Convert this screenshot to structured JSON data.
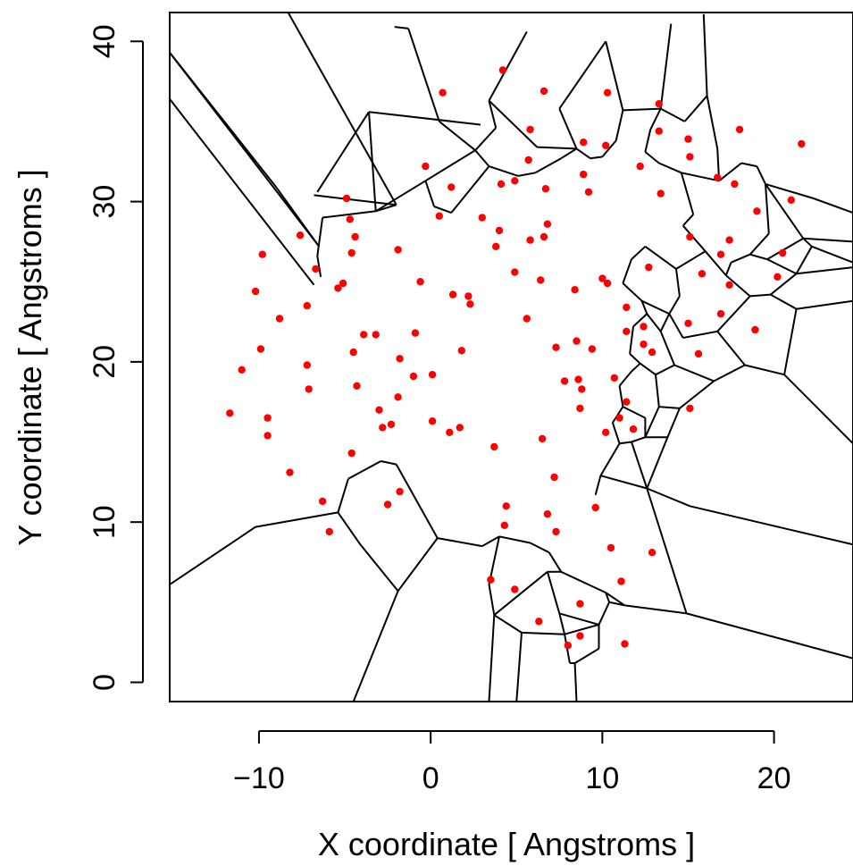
{
  "chart_data": {
    "type": "scatter",
    "xlabel": "X coordinate [ Angstroms ]",
    "ylabel": "Y coordinate [ Angstroms ]",
    "xlim": [
      -15.2,
      24.6
    ],
    "ylim": [
      -1.2,
      41.8
    ],
    "x_ticks": [
      -10,
      0,
      10,
      20
    ],
    "y_ticks": [
      0,
      10,
      20,
      30,
      40
    ],
    "x_tick_labels": [
      "−10",
      "0",
      "10",
      "20"
    ],
    "y_tick_labels": [
      "0",
      "10",
      "20",
      "30",
      "40"
    ],
    "point_color": "#ff0000",
    "edge_color": "#000000",
    "overlay": "voronoi-tessellation",
    "points": [
      [
        4.2,
        38.2
      ],
      [
        0.7,
        36.8
      ],
      [
        6.6,
        36.9
      ],
      [
        10.3,
        36.8
      ],
      [
        13.3,
        36.1
      ],
      [
        18.0,
        34.5
      ],
      [
        21.6,
        33.6
      ],
      [
        5.8,
        34.5
      ],
      [
        8.9,
        33.7
      ],
      [
        10.2,
        33.5
      ],
      [
        13.3,
        34.4
      ],
      [
        15.0,
        33.9
      ],
      [
        15.1,
        32.8
      ],
      [
        5.7,
        32.6
      ],
      [
        -0.3,
        32.2
      ],
      [
        12.2,
        32.2
      ],
      [
        16.7,
        31.5
      ],
      [
        4.1,
        31.1
      ],
      [
        4.9,
        31.3
      ],
      [
        1.2,
        30.9
      ],
      [
        6.7,
        30.8
      ],
      [
        9.2,
        30.6
      ],
      [
        13.4,
        30.5
      ],
      [
        17.7,
        31.1
      ],
      [
        -4.9,
        30.2
      ],
      [
        0.5,
        29.1
      ],
      [
        3.0,
        29.0
      ],
      [
        8.9,
        31.7
      ],
      [
        -4.7,
        28.9
      ],
      [
        4.0,
        28.2
      ],
      [
        6.8,
        28.6
      ],
      [
        -7.6,
        27.9
      ],
      [
        -4.4,
        27.8
      ],
      [
        -1.9,
        27.0
      ],
      [
        3.8,
        27.2
      ],
      [
        5.8,
        27.6
      ],
      [
        6.6,
        27.8
      ],
      [
        15.1,
        27.8
      ],
      [
        17.4,
        27.6
      ],
      [
        -9.8,
        26.7
      ],
      [
        -4.6,
        26.8
      ],
      [
        21.0,
        30.1
      ],
      [
        19.0,
        29.4
      ],
      [
        16.9,
        26.7
      ],
      [
        20.5,
        26.8
      ],
      [
        -6.7,
        25.8
      ],
      [
        -0.6,
        25.0
      ],
      [
        4.9,
        25.6
      ],
      [
        6.4,
        25.1
      ],
      [
        8.4,
        24.5
      ],
      [
        10.0,
        25.2
      ],
      [
        10.3,
        24.9
      ],
      [
        12.7,
        25.9
      ],
      [
        15.8,
        25.5
      ],
      [
        20.2,
        25.3
      ],
      [
        -5.1,
        24.9
      ],
      [
        -5.4,
        24.6
      ],
      [
        1.3,
        24.2
      ],
      [
        2.2,
        24.1
      ],
      [
        -10.2,
        24.4
      ],
      [
        2.3,
        23.6
      ],
      [
        -7.2,
        23.5
      ],
      [
        11.4,
        23.4
      ],
      [
        17.4,
        24.8
      ],
      [
        16.9,
        23.0
      ],
      [
        -8.8,
        22.7
      ],
      [
        5.6,
        22.7
      ],
      [
        -3.9,
        21.7
      ],
      [
        -3.2,
        21.7
      ],
      [
        -0.9,
        21.8
      ],
      [
        8.5,
        21.3
      ],
      [
        11.4,
        21.9
      ],
      [
        12.4,
        22.2
      ],
      [
        15.0,
        22.4
      ],
      [
        18.9,
        22.0
      ],
      [
        -9.9,
        20.8
      ],
      [
        -4.5,
        20.6
      ],
      [
        1.8,
        20.7
      ],
      [
        7.3,
        20.9
      ],
      [
        9.4,
        20.8
      ],
      [
        12.4,
        21.1
      ],
      [
        12.9,
        20.6
      ],
      [
        15.6,
        20.5
      ],
      [
        -11.0,
        19.5
      ],
      [
        -7.2,
        19.8
      ],
      [
        -1.8,
        20.2
      ],
      [
        0.1,
        19.2
      ],
      [
        -1.0,
        19.1
      ],
      [
        7.8,
        18.8
      ],
      [
        8.6,
        18.9
      ],
      [
        8.8,
        18.3
      ],
      [
        10.7,
        19.0
      ],
      [
        -7.1,
        18.3
      ],
      [
        -4.3,
        18.5
      ],
      [
        -1.9,
        17.8
      ],
      [
        11.4,
        17.5
      ],
      [
        -3.0,
        17.0
      ],
      [
        -2.3,
        16.1
      ],
      [
        8.7,
        17.1
      ],
      [
        15.1,
        17.1
      ],
      [
        -11.7,
        16.8
      ],
      [
        -9.5,
        16.5
      ],
      [
        -2.8,
        15.9
      ],
      [
        0.1,
        16.3
      ],
      [
        1.1,
        15.6
      ],
      [
        1.7,
        15.9
      ],
      [
        11.0,
        16.5
      ],
      [
        11.8,
        15.8
      ],
      [
        10.2,
        15.6
      ],
      [
        -9.5,
        15.4
      ],
      [
        6.5,
        15.2
      ],
      [
        3.7,
        14.7
      ],
      [
        -4.6,
        14.3
      ],
      [
        -8.2,
        13.1
      ],
      [
        7.2,
        12.8
      ],
      [
        -1.8,
        11.9
      ],
      [
        -6.3,
        11.3
      ],
      [
        4.4,
        11.0
      ],
      [
        -2.5,
        11.1
      ],
      [
        9.6,
        10.9
      ],
      [
        6.8,
        10.5
      ],
      [
        4.3,
        9.8
      ],
      [
        7.3,
        9.4
      ],
      [
        -5.9,
        9.4
      ],
      [
        10.5,
        8.4
      ],
      [
        12.9,
        8.1
      ],
      [
        3.5,
        6.4
      ],
      [
        4.9,
        5.8
      ],
      [
        11.1,
        6.3
      ],
      [
        8.7,
        4.9
      ],
      [
        6.3,
        3.8
      ],
      [
        8.7,
        2.9
      ],
      [
        8.0,
        2.3
      ],
      [
        11.3,
        2.4
      ]
    ],
    "edges": [
      [
        -15.2,
        39.3,
        -6.5,
        27.2
      ],
      [
        -15.2,
        39.3,
        -9.0,
        30.9
      ],
      [
        -9.0,
        30.9,
        -6.5,
        27.2
      ],
      [
        -15.2,
        36.4,
        -6.8,
        24.8
      ],
      [
        -6.8,
        30.4,
        -2.0,
        29.8
      ],
      [
        -8.3,
        41.8,
        -2.0,
        29.8
      ],
      [
        -2.0,
        29.8,
        -3.2,
        29.4
      ],
      [
        -1.3,
        40.8,
        -2.1,
        40.9
      ],
      [
        -3.2,
        29.4,
        -6.3,
        29.0
      ],
      [
        -6.3,
        29.0,
        -6.6,
        26.6
      ],
      [
        -6.6,
        26.6,
        -6.4,
        25.3
      ],
      [
        -1.3,
        40.8,
        0.5,
        35.0
      ],
      [
        0.5,
        35.0,
        2.6,
        33.2
      ],
      [
        2.6,
        33.2,
        3.8,
        34.6
      ],
      [
        3.8,
        34.6,
        3.4,
        36.3
      ],
      [
        3.4,
        36.3,
        5.6,
        40.6
      ],
      [
        3.4,
        36.3,
        6.2,
        33.4
      ],
      [
        6.2,
        33.4,
        8.5,
        33.3
      ],
      [
        8.5,
        33.3,
        7.5,
        35.8
      ],
      [
        7.5,
        35.8,
        10.2,
        40.0
      ],
      [
        -3.6,
        35.6,
        2.9,
        34.8
      ],
      [
        -3.6,
        35.6,
        -6.6,
        30.6
      ],
      [
        -3.6,
        35.6,
        -3.2,
        29.4
      ],
      [
        2.6,
        33.2,
        -0.3,
        31.3
      ],
      [
        -0.3,
        31.3,
        -3.2,
        29.4
      ],
      [
        -0.3,
        31.3,
        0.2,
        29.7
      ],
      [
        0.2,
        29.7,
        1.2,
        29.3
      ],
      [
        1.2,
        29.3,
        3.4,
        32.2
      ],
      [
        3.4,
        32.2,
        2.6,
        33.2
      ],
      [
        3.4,
        32.2,
        5.1,
        31.6
      ],
      [
        5.1,
        31.6,
        6.1,
        31.8
      ],
      [
        6.1,
        31.8,
        7.6,
        32.7
      ],
      [
        7.6,
        32.7,
        8.5,
        33.3
      ],
      [
        8.5,
        33.3,
        9.3,
        32.7
      ],
      [
        9.3,
        32.7,
        10.0,
        32.8
      ],
      [
        10.0,
        32.8,
        10.8,
        33.8
      ],
      [
        10.8,
        33.8,
        11.2,
        35.7
      ],
      [
        11.2,
        35.7,
        10.2,
        40.0
      ],
      [
        11.2,
        35.7,
        13.4,
        35.8
      ],
      [
        13.4,
        35.8,
        14.8,
        35.0
      ],
      [
        14.8,
        35.0,
        16.1,
        36.6
      ],
      [
        16.1,
        36.6,
        15.9,
        41.7
      ],
      [
        16.1,
        36.6,
        16.7,
        33.3
      ],
      [
        16.7,
        33.3,
        16.8,
        31.3
      ],
      [
        16.8,
        31.3,
        18.1,
        32.4
      ],
      [
        18.1,
        32.4,
        19.0,
        32.2
      ],
      [
        19.0,
        32.2,
        19.5,
        31.1
      ],
      [
        19.5,
        31.1,
        22.3,
        30.2
      ],
      [
        22.3,
        30.2,
        24.6,
        29.3
      ],
      [
        19.5,
        31.1,
        21.7,
        27.7
      ],
      [
        21.7,
        27.7,
        24.6,
        27.5
      ],
      [
        21.7,
        27.7,
        22.2,
        27.2
      ],
      [
        22.2,
        27.2,
        24.6,
        26.2
      ],
      [
        22.2,
        27.2,
        21.3,
        25.5
      ],
      [
        21.3,
        25.5,
        24.6,
        25.9
      ],
      [
        21.3,
        25.5,
        19.8,
        24.2
      ],
      [
        19.8,
        24.2,
        21.3,
        23.3
      ],
      [
        21.3,
        23.3,
        24.6,
        23.8
      ],
      [
        21.3,
        23.3,
        20.6,
        19.2
      ],
      [
        20.6,
        19.2,
        24.6,
        14.9
      ],
      [
        19.8,
        24.2,
        18.6,
        24.1
      ],
      [
        18.6,
        24.1,
        17.2,
        25.4
      ],
      [
        17.2,
        25.4,
        17.5,
        26.2
      ],
      [
        17.5,
        26.2,
        18.6,
        26.7
      ],
      [
        18.6,
        26.7,
        19.7,
        28.0
      ],
      [
        19.7,
        28.0,
        19.5,
        31.1
      ],
      [
        18.6,
        26.7,
        19.6,
        26.4
      ],
      [
        19.6,
        26.4,
        21.7,
        27.7
      ],
      [
        19.6,
        26.4,
        21.3,
        25.5
      ],
      [
        14.0,
        41.1,
        13.4,
        35.8
      ],
      [
        13.4,
        35.8,
        12.8,
        34.5
      ],
      [
        12.8,
        34.5,
        12.5,
        33.1
      ],
      [
        12.5,
        33.1,
        13.3,
        32.4
      ],
      [
        13.3,
        32.4,
        14.6,
        31.8
      ],
      [
        14.6,
        31.8,
        16.8,
        31.3
      ],
      [
        14.6,
        31.8,
        15.3,
        29.2
      ],
      [
        15.3,
        29.2,
        14.7,
        28.5
      ],
      [
        14.7,
        28.5,
        16.0,
        26.9
      ],
      [
        16.0,
        26.9,
        17.2,
        25.4
      ],
      [
        16.0,
        26.9,
        14.3,
        25.8
      ],
      [
        14.3,
        25.8,
        14.5,
        24.1
      ],
      [
        14.5,
        24.1,
        13.9,
        23.0
      ],
      [
        13.9,
        23.0,
        14.7,
        21.5
      ],
      [
        14.7,
        21.5,
        16.7,
        21.9
      ],
      [
        16.7,
        21.9,
        18.6,
        24.1
      ],
      [
        16.7,
        21.9,
        18.3,
        19.8
      ],
      [
        18.3,
        19.8,
        20.6,
        19.2
      ],
      [
        18.3,
        19.8,
        16.5,
        18.8
      ],
      [
        16.5,
        18.8,
        14.5,
        17.1
      ],
      [
        14.5,
        17.1,
        13.8,
        15.3
      ],
      [
        13.8,
        15.3,
        12.6,
        12.1
      ],
      [
        12.6,
        12.1,
        15.1,
        11.0
      ],
      [
        15.1,
        11.0,
        24.6,
        8.6
      ],
      [
        13.9,
        23.0,
        13.4,
        21.9
      ],
      [
        13.4,
        21.9,
        14.2,
        19.8
      ],
      [
        14.2,
        19.8,
        16.5,
        18.8
      ],
      [
        14.2,
        19.8,
        13.1,
        19.2
      ],
      [
        13.1,
        19.2,
        13.3,
        17.2
      ],
      [
        13.3,
        17.2,
        14.5,
        17.1
      ],
      [
        13.3,
        17.2,
        12.5,
        15.3
      ],
      [
        12.5,
        15.3,
        13.8,
        15.3
      ],
      [
        12.5,
        15.3,
        11.7,
        15.0
      ],
      [
        11.7,
        15.0,
        12.6,
        12.1
      ],
      [
        14.3,
        25.8,
        12.5,
        27.2
      ],
      [
        12.5,
        27.2,
        11.7,
        26.4
      ],
      [
        11.7,
        26.4,
        11.2,
        24.9
      ],
      [
        11.2,
        24.9,
        12.3,
        23.8
      ],
      [
        12.3,
        23.8,
        13.9,
        23.0
      ],
      [
        12.3,
        23.8,
        12.6,
        23.0
      ],
      [
        12.6,
        23.0,
        13.4,
        21.9
      ],
      [
        12.6,
        23.0,
        11.8,
        22.2
      ],
      [
        11.8,
        22.2,
        11.6,
        20.5
      ],
      [
        11.6,
        20.5,
        12.2,
        19.9
      ],
      [
        12.2,
        19.9,
        13.1,
        19.2
      ],
      [
        12.2,
        19.9,
        11.7,
        19.4
      ],
      [
        11.7,
        19.4,
        11.0,
        18.5
      ],
      [
        11.0,
        18.5,
        11.2,
        17.2
      ],
      [
        11.2,
        17.2,
        12.5,
        16.5
      ],
      [
        12.5,
        16.5,
        12.5,
        15.3
      ],
      [
        11.2,
        17.2,
        10.6,
        16.2
      ],
      [
        10.6,
        16.2,
        11.0,
        14.9
      ],
      [
        11.0,
        14.9,
        11.7,
        15.0
      ],
      [
        11.0,
        14.9,
        9.9,
        12.9
      ],
      [
        9.9,
        12.9,
        12.6,
        12.1
      ],
      [
        9.9,
        12.9,
        9.6,
        11.7
      ],
      [
        12.6,
        12.1,
        14.9,
        4.3
      ],
      [
        14.9,
        4.3,
        24.6,
        1.5
      ],
      [
        14.9,
        4.3,
        11.3,
        4.8
      ],
      [
        11.3,
        4.8,
        10.2,
        5.6
      ],
      [
        10.2,
        5.6,
        7.6,
        6.9
      ],
      [
        7.6,
        6.9,
        6.9,
        8.1
      ],
      [
        6.9,
        8.1,
        5.8,
        8.7
      ],
      [
        5.8,
        8.7,
        4.0,
        9.1
      ],
      [
        4.0,
        9.1,
        3.0,
        8.5
      ],
      [
        3.0,
        8.5,
        0.4,
        9.0
      ],
      [
        0.4,
        9.0,
        -2.0,
        13.6
      ],
      [
        -2.0,
        13.6,
        -2.9,
        13.8
      ],
      [
        -2.9,
        13.8,
        -4.8,
        12.7
      ],
      [
        -4.8,
        12.7,
        -5.4,
        10.6
      ],
      [
        -5.4,
        10.6,
        -10.2,
        9.7
      ],
      [
        -10.2,
        9.7,
        -15.2,
        6.1
      ],
      [
        -5.4,
        10.6,
        -4.1,
        8.6
      ],
      [
        -4.1,
        8.6,
        -1.9,
        5.7
      ],
      [
        -1.9,
        5.7,
        0.4,
        9.0
      ],
      [
        -1.9,
        5.7,
        -4.5,
        -1.2
      ],
      [
        4.0,
        9.1,
        3.4,
        6.1
      ],
      [
        3.4,
        6.1,
        3.7,
        4.2
      ],
      [
        3.7,
        4.2,
        3.4,
        -1.2
      ],
      [
        3.7,
        4.2,
        6.8,
        6.9
      ],
      [
        6.8,
        6.9,
        7.6,
        6.9
      ],
      [
        6.8,
        6.9,
        7.5,
        4.3
      ],
      [
        7.5,
        4.3,
        7.8,
        3.0
      ],
      [
        7.8,
        3.0,
        9.8,
        3.6
      ],
      [
        9.8,
        3.6,
        10.4,
        5.0
      ],
      [
        10.4,
        5.0,
        11.3,
        4.8
      ],
      [
        10.4,
        5.0,
        10.2,
        5.6
      ],
      [
        7.5,
        4.3,
        9.8,
        3.6
      ],
      [
        7.8,
        3.0,
        8.1,
        1.2
      ],
      [
        8.1,
        1.2,
        8.4,
        1.2
      ],
      [
        8.4,
        1.2,
        9.8,
        2.1
      ],
      [
        9.8,
        2.1,
        9.8,
        3.6
      ],
      [
        8.4,
        1.2,
        8.5,
        -1.2
      ],
      [
        3.7,
        4.2,
        5.3,
        3.1
      ],
      [
        5.3,
        3.1,
        5.0,
        -1.2
      ],
      [
        5.3,
        3.1,
        7.8,
        3.0
      ]
    ]
  }
}
